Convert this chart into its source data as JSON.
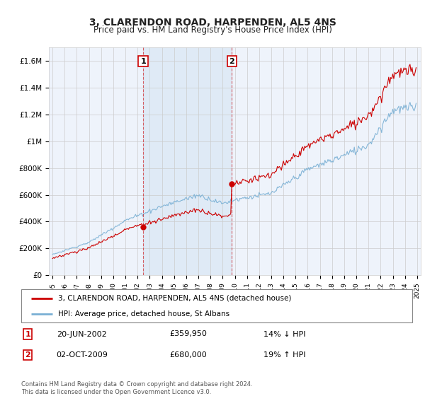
{
  "title": "3, CLARENDON ROAD, HARPENDEN, AL5 4NS",
  "subtitle": "Price paid vs. HM Land Registry's House Price Index (HPI)",
  "legend_line1": "3, CLARENDON ROAD, HARPENDEN, AL5 4NS (detached house)",
  "legend_line2": "HPI: Average price, detached house, St Albans",
  "sale1_date": "20-JUN-2002",
  "sale1_price": "£359,950",
  "sale1_note": "14% ↓ HPI",
  "sale1_year": 2002.46,
  "sale1_value": 359950,
  "sale2_date": "02-OCT-2009",
  "sale2_price": "£680,000",
  "sale2_note": "19% ↑ HPI",
  "sale2_year": 2009.75,
  "sale2_value": 680000,
  "hpi_color": "#7ab0d4",
  "price_color": "#cc0000",
  "marker_box_color": "#cc0000",
  "background_color": "#ffffff",
  "plot_bg_color": "#eef3fb",
  "highlight_color": "#dce8f5",
  "grid_color": "#cccccc",
  "footnote": "Contains HM Land Registry data © Crown copyright and database right 2024.\nThis data is licensed under the Open Government Licence v3.0.",
  "ylim": [
    0,
    1700000
  ],
  "yticks": [
    0,
    200000,
    400000,
    600000,
    800000,
    1000000,
    1200000,
    1400000,
    1600000
  ],
  "ytick_labels": [
    "£0",
    "£200K",
    "£400K",
    "£600K",
    "£800K",
    "£1M",
    "£1.2M",
    "£1.4M",
    "£1.6M"
  ],
  "xlim": [
    1994.7,
    2025.3
  ]
}
